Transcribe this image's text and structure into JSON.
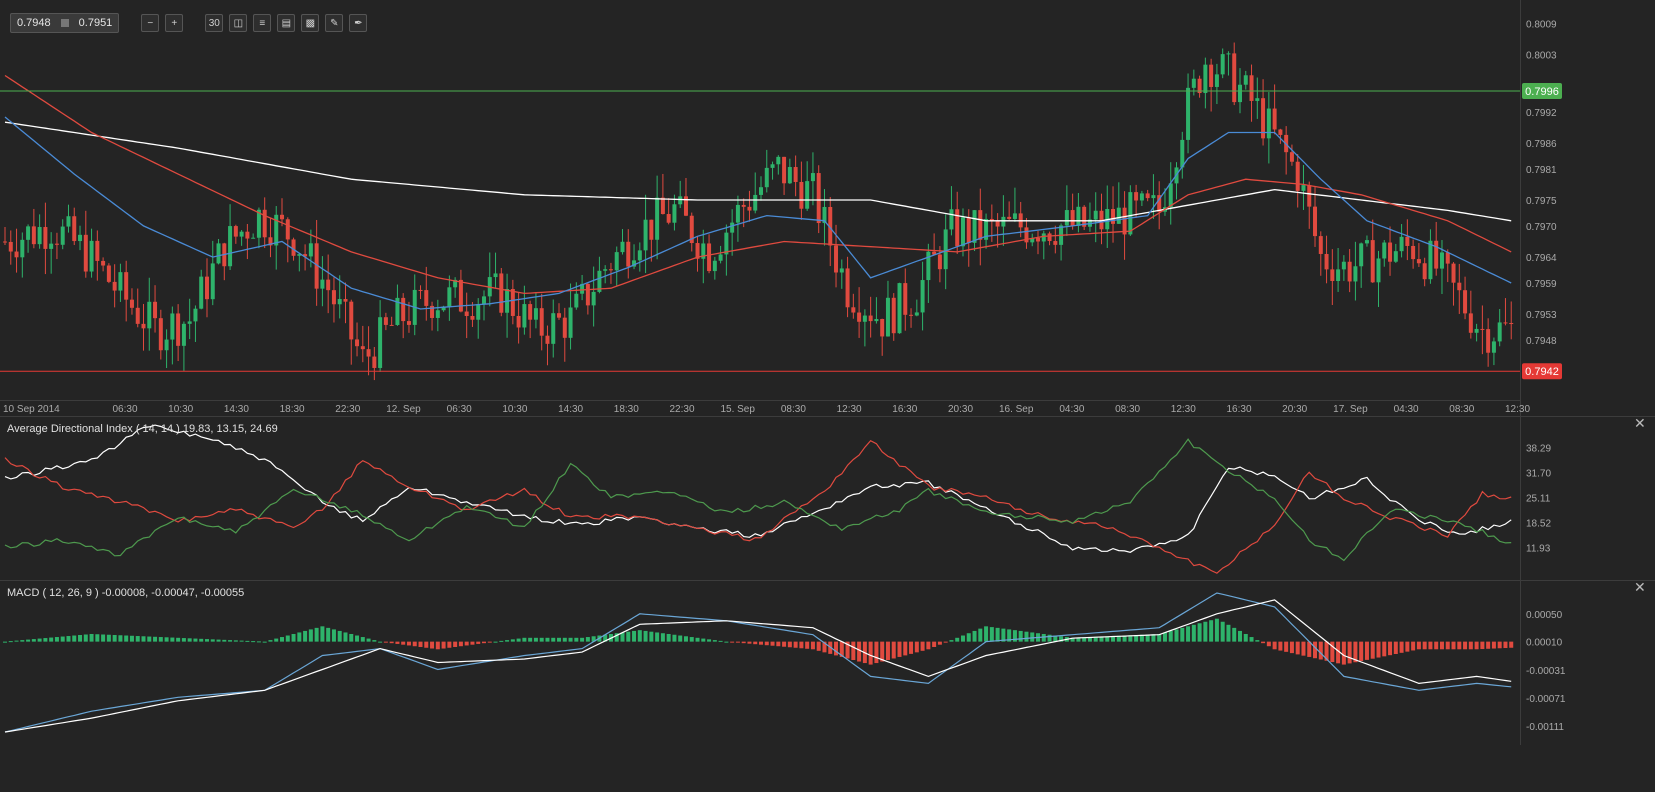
{
  "toolbar": {
    "bid": "0.7948",
    "ask": "0.7951",
    "buttons": [
      {
        "name": "zoom-out-icon"
      },
      {
        "name": "zoom-in-icon"
      },
      {
        "name": "timeframe-button",
        "label": "30"
      },
      {
        "name": "candlestick-icon"
      },
      {
        "name": "indicators-icon"
      },
      {
        "name": "chart-type-icon"
      },
      {
        "name": "layers-icon"
      },
      {
        "name": "draw-icon"
      },
      {
        "name": "pen-icon"
      }
    ]
  },
  "chart_data": [
    {
      "type": "candlestick",
      "title": "",
      "y_ticks": [
        "0.8009",
        "0.8003",
        "0.7992",
        "0.7986",
        "0.7981",
        "0.7975",
        "0.7970",
        "0.7964",
        "0.7959",
        "0.7953",
        "0.7948"
      ],
      "ylim": [
        0.7938,
        0.8012
      ],
      "x_ticks": [
        "10 Sep 2014",
        "06:30",
        "10:30",
        "14:30",
        "18:30",
        "22:30",
        "12. Sep",
        "06:30",
        "10:30",
        "14:30",
        "18:30",
        "22:30",
        "15. Sep",
        "08:30",
        "12:30",
        "16:30",
        "20:30",
        "16. Sep",
        "04:30",
        "08:30",
        "12:30",
        "16:30",
        "20:30",
        "17. Sep",
        "04:30",
        "08:30",
        "12:30"
      ],
      "price_lines": [
        {
          "label": "0.7996",
          "value": 0.7996,
          "color": "#4caf50"
        },
        {
          "label": "0.7942",
          "value": 0.7942,
          "color": "#e53935"
        }
      ],
      "close_path": [
        [
          0,
          0.7967
        ],
        [
          8,
          0.797
        ],
        [
          14,
          0.7965
        ],
        [
          20,
          0.7957
        ],
        [
          26,
          0.795
        ],
        [
          32,
          0.7952
        ],
        [
          38,
          0.7966
        ],
        [
          44,
          0.7972
        ],
        [
          50,
          0.7968
        ],
        [
          56,
          0.7958
        ],
        [
          62,
          0.7944
        ],
        [
          68,
          0.7952
        ],
        [
          74,
          0.7956
        ],
        [
          80,
          0.7956
        ],
        [
          86,
          0.7957
        ],
        [
          92,
          0.795
        ],
        [
          98,
          0.7952
        ],
        [
          104,
          0.7962
        ],
        [
          110,
          0.7969
        ],
        [
          116,
          0.7973
        ],
        [
          122,
          0.7965
        ],
        [
          128,
          0.7974
        ],
        [
          134,
          0.7981
        ],
        [
          140,
          0.7976
        ],
        [
          146,
          0.7958
        ],
        [
          152,
          0.7952
        ],
        [
          158,
          0.7957
        ],
        [
          164,
          0.7969
        ],
        [
          170,
          0.7969
        ],
        [
          176,
          0.797
        ],
        [
          182,
          0.797
        ],
        [
          188,
          0.797
        ],
        [
          194,
          0.7972
        ],
        [
          200,
          0.7973
        ],
        [
          204,
          0.799
        ],
        [
          208,
          0.8002
        ],
        [
          212,
          0.7999
        ],
        [
          216,
          0.7994
        ],
        [
          220,
          0.7987
        ],
        [
          224,
          0.798
        ],
        [
          228,
          0.7964
        ],
        [
          232,
          0.7962
        ],
        [
          236,
          0.7963
        ],
        [
          240,
          0.7965
        ],
        [
          244,
          0.7966
        ],
        [
          248,
          0.7962
        ],
        [
          252,
          0.7956
        ],
        [
          256,
          0.795
        ]
      ],
      "total_bars": 262,
      "ma": [
        {
          "color": "#ffffff",
          "points": [
            [
              0,
              0.799
            ],
            [
              30,
              0.7985
            ],
            [
              60,
              0.7979
            ],
            [
              90,
              0.7976
            ],
            [
              120,
              0.7975
            ],
            [
              150,
              0.7975
            ],
            [
              170,
              0.7971
            ],
            [
              190,
              0.7971
            ],
            [
              205,
              0.7974
            ],
            [
              220,
              0.7977
            ],
            [
              235,
              0.7975
            ],
            [
              250,
              0.7973
            ],
            [
              261,
              0.7971
            ]
          ]
        },
        {
          "color": "#e04a3f",
          "points": [
            [
              0,
              0.7999
            ],
            [
              15,
              0.7988
            ],
            [
              30,
              0.798
            ],
            [
              45,
              0.7972
            ],
            [
              60,
              0.7965
            ],
            [
              75,
              0.796
            ],
            [
              90,
              0.7957
            ],
            [
              105,
              0.7958
            ],
            [
              120,
              0.7964
            ],
            [
              135,
              0.7967
            ],
            [
              150,
              0.7966
            ],
            [
              165,
              0.7965
            ],
            [
              180,
              0.7968
            ],
            [
              195,
              0.7969
            ],
            [
              205,
              0.7976
            ],
            [
              215,
              0.7979
            ],
            [
              225,
              0.7978
            ],
            [
              235,
              0.7976
            ],
            [
              250,
              0.7971
            ],
            [
              261,
              0.7965
            ]
          ]
        },
        {
          "color": "#4a8bd6",
          "points": [
            [
              0,
              0.7991
            ],
            [
              12,
              0.798
            ],
            [
              24,
              0.797
            ],
            [
              36,
              0.7964
            ],
            [
              48,
              0.7967
            ],
            [
              60,
              0.7958
            ],
            [
              72,
              0.7954
            ],
            [
              84,
              0.7955
            ],
            [
              96,
              0.7957
            ],
            [
              108,
              0.7962
            ],
            [
              120,
              0.7968
            ],
            [
              132,
              0.7972
            ],
            [
              142,
              0.7971
            ],
            [
              150,
              0.796
            ],
            [
              160,
              0.7964
            ],
            [
              170,
              0.7968
            ],
            [
              185,
              0.797
            ],
            [
              198,
              0.7972
            ],
            [
              205,
              0.7983
            ],
            [
              212,
              0.7988
            ],
            [
              220,
              0.7988
            ],
            [
              228,
              0.7979
            ],
            [
              236,
              0.7971
            ],
            [
              248,
              0.7966
            ],
            [
              261,
              0.7959
            ]
          ]
        }
      ]
    },
    {
      "type": "line",
      "title": "Average Directional Index ( 14, 14 ) 19.83, 13.15, 24.69",
      "y_ticks": [
        "38.29",
        "31.70",
        "25.11",
        "18.52",
        "11.93"
      ],
      "ylim": [
        5,
        45
      ],
      "series": [
        {
          "color": "#ffffff",
          "points": [
            [
              0,
              30
            ],
            [
              15,
              35
            ],
            [
              25,
              44
            ],
            [
              35,
              41
            ],
            [
              45,
              35
            ],
            [
              55,
              24
            ],
            [
              62,
              19
            ],
            [
              70,
              28
            ],
            [
              80,
              24
            ],
            [
              90,
              20
            ],
            [
              100,
              18
            ],
            [
              110,
              20
            ],
            [
              120,
              17
            ],
            [
              130,
              15
            ],
            [
              140,
              21
            ],
            [
              150,
              28
            ],
            [
              160,
              29
            ],
            [
              170,
              22
            ],
            [
              185,
              12
            ],
            [
              195,
              11
            ],
            [
              205,
              15
            ],
            [
              212,
              33
            ],
            [
              220,
              31
            ],
            [
              226,
              25
            ],
            [
              232,
              28
            ],
            [
              236,
              30
            ],
            [
              244,
              20
            ],
            [
              252,
              15
            ],
            [
              261,
              19
            ]
          ]
        },
        {
          "color": "#e04a3f",
          "points": [
            [
              0,
              35
            ],
            [
              10,
              28
            ],
            [
              20,
              24
            ],
            [
              30,
              19
            ],
            [
              40,
              22
            ],
            [
              50,
              17
            ],
            [
              55,
              22
            ],
            [
              62,
              35
            ],
            [
              70,
              28
            ],
            [
              80,
              22
            ],
            [
              90,
              27
            ],
            [
              98,
              20
            ],
            [
              110,
              20
            ],
            [
              120,
              17
            ],
            [
              130,
              14
            ],
            [
              142,
              27
            ],
            [
              150,
              40
            ],
            [
              160,
              28
            ],
            [
              170,
              25
            ],
            [
              180,
              20
            ],
            [
              190,
              18
            ],
            [
              200,
              12
            ],
            [
              210,
              5
            ],
            [
              220,
              18
            ],
            [
              226,
              32
            ],
            [
              232,
              25
            ],
            [
              240,
              20
            ],
            [
              250,
              15
            ],
            [
              256,
              26
            ],
            [
              261,
              25
            ]
          ]
        },
        {
          "color": "#4e9a4e",
          "points": [
            [
              0,
              12
            ],
            [
              10,
              14
            ],
            [
              20,
              10
            ],
            [
              30,
              20
            ],
            [
              40,
              16
            ],
            [
              50,
              27
            ],
            [
              60,
              22
            ],
            [
              70,
              14
            ],
            [
              80,
              23
            ],
            [
              90,
              17
            ],
            [
              98,
              34
            ],
            [
              105,
              25
            ],
            [
              115,
              27
            ],
            [
              125,
              21
            ],
            [
              135,
              24
            ],
            [
              145,
              17
            ],
            [
              155,
              22
            ],
            [
              160,
              27
            ],
            [
              170,
              21
            ],
            [
              185,
              19
            ],
            [
              195,
              24
            ],
            [
              205,
              40
            ],
            [
              212,
              32
            ],
            [
              220,
              25
            ],
            [
              226,
              14
            ],
            [
              232,
              9
            ],
            [
              240,
              22
            ],
            [
              250,
              19
            ],
            [
              256,
              16
            ],
            [
              261,
              13
            ]
          ]
        }
      ]
    },
    {
      "type": "bar+line",
      "title": "MACD ( 12, 26, 9 ) -0.00008, -0.00047, -0.00055",
      "y_ticks": [
        "0.00050",
        "0.00010",
        "-0.00031",
        "-0.00071",
        "-0.00111"
      ],
      "ylim": [
        -0.0013,
        0.0009
      ],
      "macd": [
        [
          0,
          -0.0012
        ],
        [
          15,
          -0.0009
        ],
        [
          30,
          -0.0007
        ],
        [
          45,
          -0.0006
        ],
        [
          55,
          -0.0001
        ],
        [
          65,
          0.0
        ],
        [
          75,
          -0.0003
        ],
        [
          90,
          -0.0001
        ],
        [
          100,
          0.0
        ],
        [
          110,
          0.0005
        ],
        [
          125,
          0.0004
        ],
        [
          140,
          0.0002
        ],
        [
          150,
          -0.0004
        ],
        [
          160,
          -0.0005
        ],
        [
          170,
          0.0001
        ],
        [
          185,
          0.0002
        ],
        [
          200,
          0.0003
        ],
        [
          210,
          0.0008
        ],
        [
          220,
          0.0006
        ],
        [
          232,
          -0.0004
        ],
        [
          245,
          -0.0006
        ],
        [
          255,
          -0.0005
        ],
        [
          261,
          -0.00055
        ]
      ],
      "signal": [
        [
          0,
          -0.0012
        ],
        [
          15,
          -0.001
        ],
        [
          30,
          -0.00075
        ],
        [
          45,
          -0.0006
        ],
        [
          55,
          -0.0003
        ],
        [
          65,
          0.0
        ],
        [
          75,
          -0.0002
        ],
        [
          90,
          -0.00015
        ],
        [
          100,
          -5e-05
        ],
        [
          110,
          0.00035
        ],
        [
          125,
          0.0004
        ],
        [
          140,
          0.0003
        ],
        [
          150,
          -0.0001
        ],
        [
          160,
          -0.0004
        ],
        [
          170,
          -0.0001
        ],
        [
          185,
          0.00015
        ],
        [
          200,
          0.0002
        ],
        [
          210,
          0.0005
        ],
        [
          220,
          0.0007
        ],
        [
          232,
          -0.0001
        ],
        [
          245,
          -0.0005
        ],
        [
          255,
          -0.0004
        ],
        [
          261,
          -0.00047
        ]
      ],
      "hist_colors": {
        "up": "#2eb36b",
        "down": "#e04a3f"
      }
    }
  ]
}
